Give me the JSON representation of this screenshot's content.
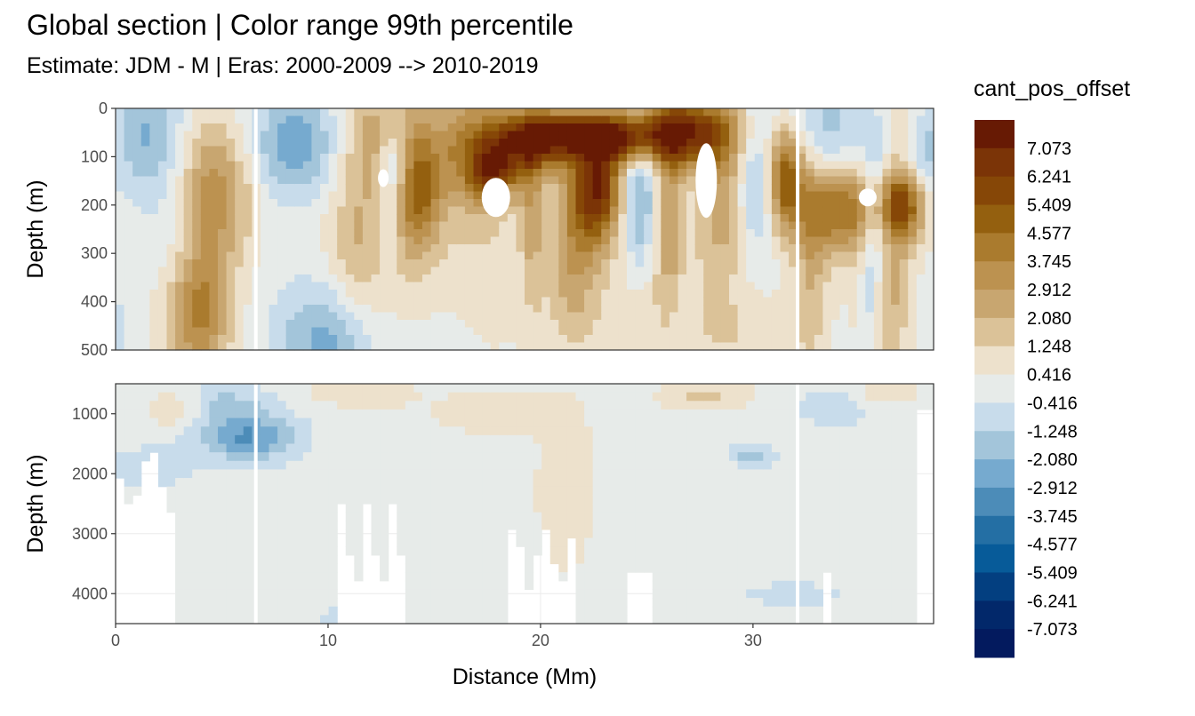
{
  "chart_data": {
    "type": "heatmap",
    "title": "Global section | Color range 99th percentile",
    "subtitle": "Estimate: JDM - M | Eras: 2000-2009 --> 2010-2019",
    "xlabel": "Distance (Mm)",
    "ylabel": "Depth (m)",
    "xlim": [
      0,
      38.5
    ],
    "x_ticks": [
      "0",
      "10",
      "20",
      "30"
    ],
    "x_tick_values": [
      0,
      10,
      20,
      30
    ],
    "grid": true,
    "panels": [
      {
        "name": "upper",
        "ylim": [
          0,
          500
        ],
        "y_reversed": true,
        "y_ticks": [
          "0",
          "100",
          "200",
          "300",
          "400",
          "500"
        ],
        "y_tick_values": [
          0,
          100,
          200,
          300,
          400,
          500
        ]
      },
      {
        "name": "lower",
        "ylim": [
          500,
          4500
        ],
        "y_reversed": true,
        "y_ticks": [
          "1000",
          "2000",
          "3000",
          "4000"
        ],
        "y_tick_values": [
          1000,
          2000,
          3000,
          4000
        ]
      }
    ],
    "legend": {
      "title": "cant_pos_offset",
      "position": "right",
      "labels": [
        "7.073",
        "6.241",
        "5.409",
        "4.577",
        "3.745",
        "2.912",
        "2.080",
        "1.248",
        "0.416",
        "-0.416",
        "-1.248",
        "-2.080",
        "-2.912",
        "-3.745",
        "-4.577",
        "-5.409",
        "-6.241",
        "-7.073"
      ],
      "colors": [
        "#671a04",
        "#7b3407",
        "#864707",
        "#94600f",
        "#aa7b2e",
        "#bc9250",
        "#c8a670",
        "#dbc298",
        "#ede1cc",
        "#e7ebe9",
        "#c8dceb",
        "#a3c5da",
        "#76aacf",
        "#4c8cb8",
        "#246fa4",
        "#075b99",
        "#033f80",
        "#02286a",
        "#031a5e"
      ]
    }
  }
}
